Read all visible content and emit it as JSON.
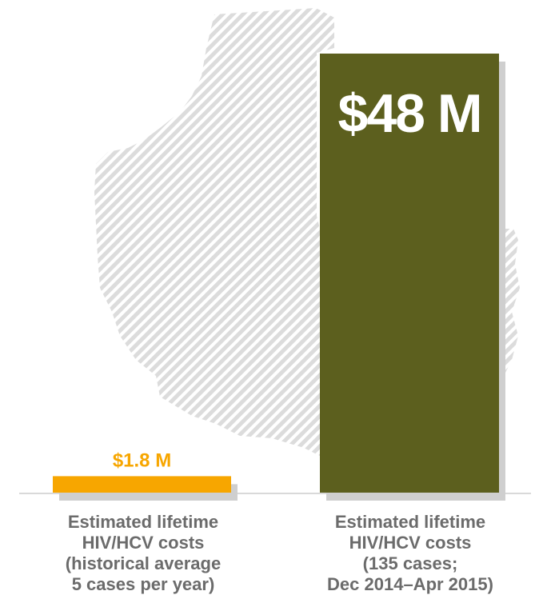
{
  "chart_data": {
    "type": "bar",
    "categories": [
      "Estimated lifetime\nHIV/HCV costs\n(historical average\n5 cases per year)",
      "Estimated lifetime\nHIV/HCV costs\n(135 cases;\nDec 2014–Apr 2015)"
    ],
    "values": [
      1.8,
      48
    ],
    "data_labels": [
      "$1.8 M",
      "$48 M"
    ],
    "ylim": [
      0,
      48
    ],
    "grid": false,
    "legend": "none"
  },
  "colors": {
    "bar_small": "#f7a600",
    "bar_large": "#5c5f1e",
    "shadow": "#cfcfcf",
    "label_small": "#f7a600",
    "label_large": "#ffffff",
    "category_text": "#6b6b6b",
    "map_hatch": "#d6d6d6",
    "baseline": "#d9d9d9"
  },
  "background": {
    "icon": "indiana-map-icon"
  }
}
